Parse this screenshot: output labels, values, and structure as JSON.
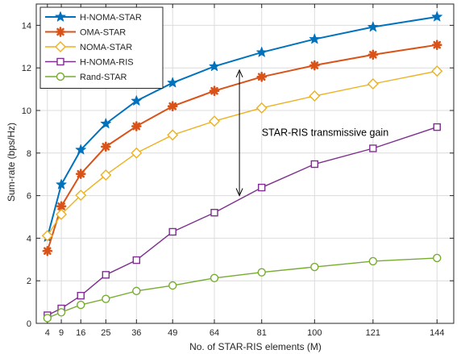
{
  "chart_data": {
    "type": "line",
    "title": "",
    "xlabel": "No. of STAR-RIS elements (M)",
    "ylabel": "Sum-rate (bps/Hz)",
    "x": [
      4,
      9,
      16,
      25,
      36,
      49,
      64,
      81,
      100,
      121,
      144
    ],
    "x_tick_labels": [
      "4",
      "9",
      "16",
      "25",
      "36",
      "49",
      "64",
      "81",
      "100",
      "121",
      "144"
    ],
    "xlim": [
      0,
      150
    ],
    "ylim": [
      0,
      15
    ],
    "y_ticks": [
      0,
      2,
      4,
      6,
      8,
      10,
      12,
      14
    ],
    "grid": true,
    "legend_position": "top-left",
    "series": [
      {
        "name": "H-NOMA-STAR",
        "color": "#0072BD",
        "marker": "star",
        "values": [
          4.05,
          6.52,
          8.15,
          9.38,
          10.45,
          11.3,
          12.07,
          12.73,
          13.35,
          13.92,
          14.4
        ]
      },
      {
        "name": "OMA-STAR",
        "color": "#D95319",
        "marker": "plus-bold",
        "values": [
          3.4,
          5.5,
          7.02,
          8.3,
          9.26,
          10.2,
          10.92,
          11.58,
          12.12,
          12.62,
          13.08
        ]
      },
      {
        "name": "NOMA-STAR",
        "color": "#EDB120",
        "marker": "diamond",
        "values": [
          4.12,
          5.12,
          6.02,
          6.97,
          8.0,
          8.85,
          9.5,
          10.12,
          10.68,
          11.25,
          11.85
        ]
      },
      {
        "name": "H-NOMA-RIS",
        "color": "#7E2F8E",
        "marker": "square",
        "values": [
          0.38,
          0.7,
          1.3,
          2.28,
          2.97,
          4.3,
          5.2,
          6.38,
          7.48,
          8.22,
          9.22
        ]
      },
      {
        "name": "Rand-STAR",
        "color": "#77AC30",
        "marker": "circle",
        "values": [
          0.25,
          0.52,
          0.87,
          1.15,
          1.52,
          1.78,
          2.13,
          2.4,
          2.65,
          2.92,
          3.07
        ]
      }
    ],
    "annotations": [
      {
        "text": "STAR-RIS transmissive gain",
        "type": "double-arrow",
        "x": 73,
        "y_from": 6.0,
        "y_to": 11.9,
        "text_x": 81,
        "text_y": 8.95
      }
    ]
  }
}
